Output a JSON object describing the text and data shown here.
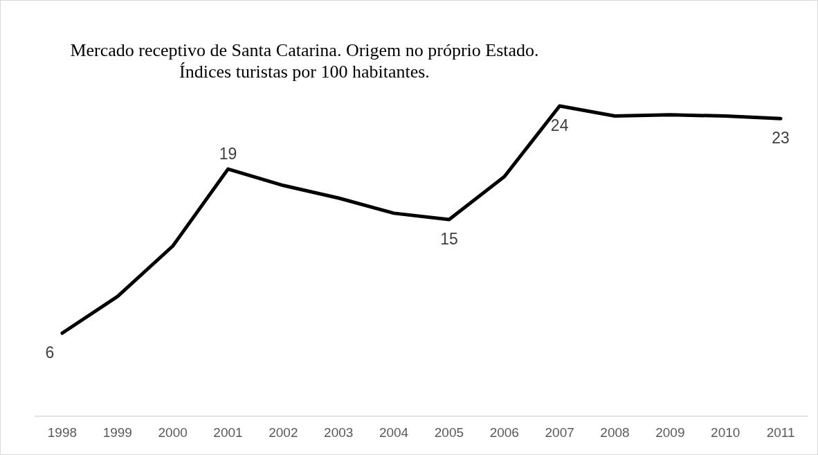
{
  "chart_data": {
    "type": "line",
    "title": "Mercado receptivo de Santa Catarina. Origem no próprio Estado.",
    "subtitle": "Índices turistas por 100 habitantes.",
    "categories": [
      "1998",
      "1999",
      "2000",
      "2001",
      "2002",
      "2003",
      "2004",
      "2005",
      "2006",
      "2007",
      "2008",
      "2009",
      "2010",
      "2011"
    ],
    "series": [
      {
        "color": "#000000",
        "values": [
          6,
          8.9,
          12.9,
          19,
          17.7,
          16.7,
          15.5,
          15,
          18.4,
          24,
          23.2,
          23.3,
          23.2,
          23
        ],
        "value_labels": [
          "6",
          null,
          null,
          "19",
          null,
          null,
          null,
          "15",
          null,
          "24",
          null,
          null,
          null,
          "23"
        ]
      }
    ],
    "tick_labels": "x",
    "marker": "none",
    "line_style": "solid"
  }
}
